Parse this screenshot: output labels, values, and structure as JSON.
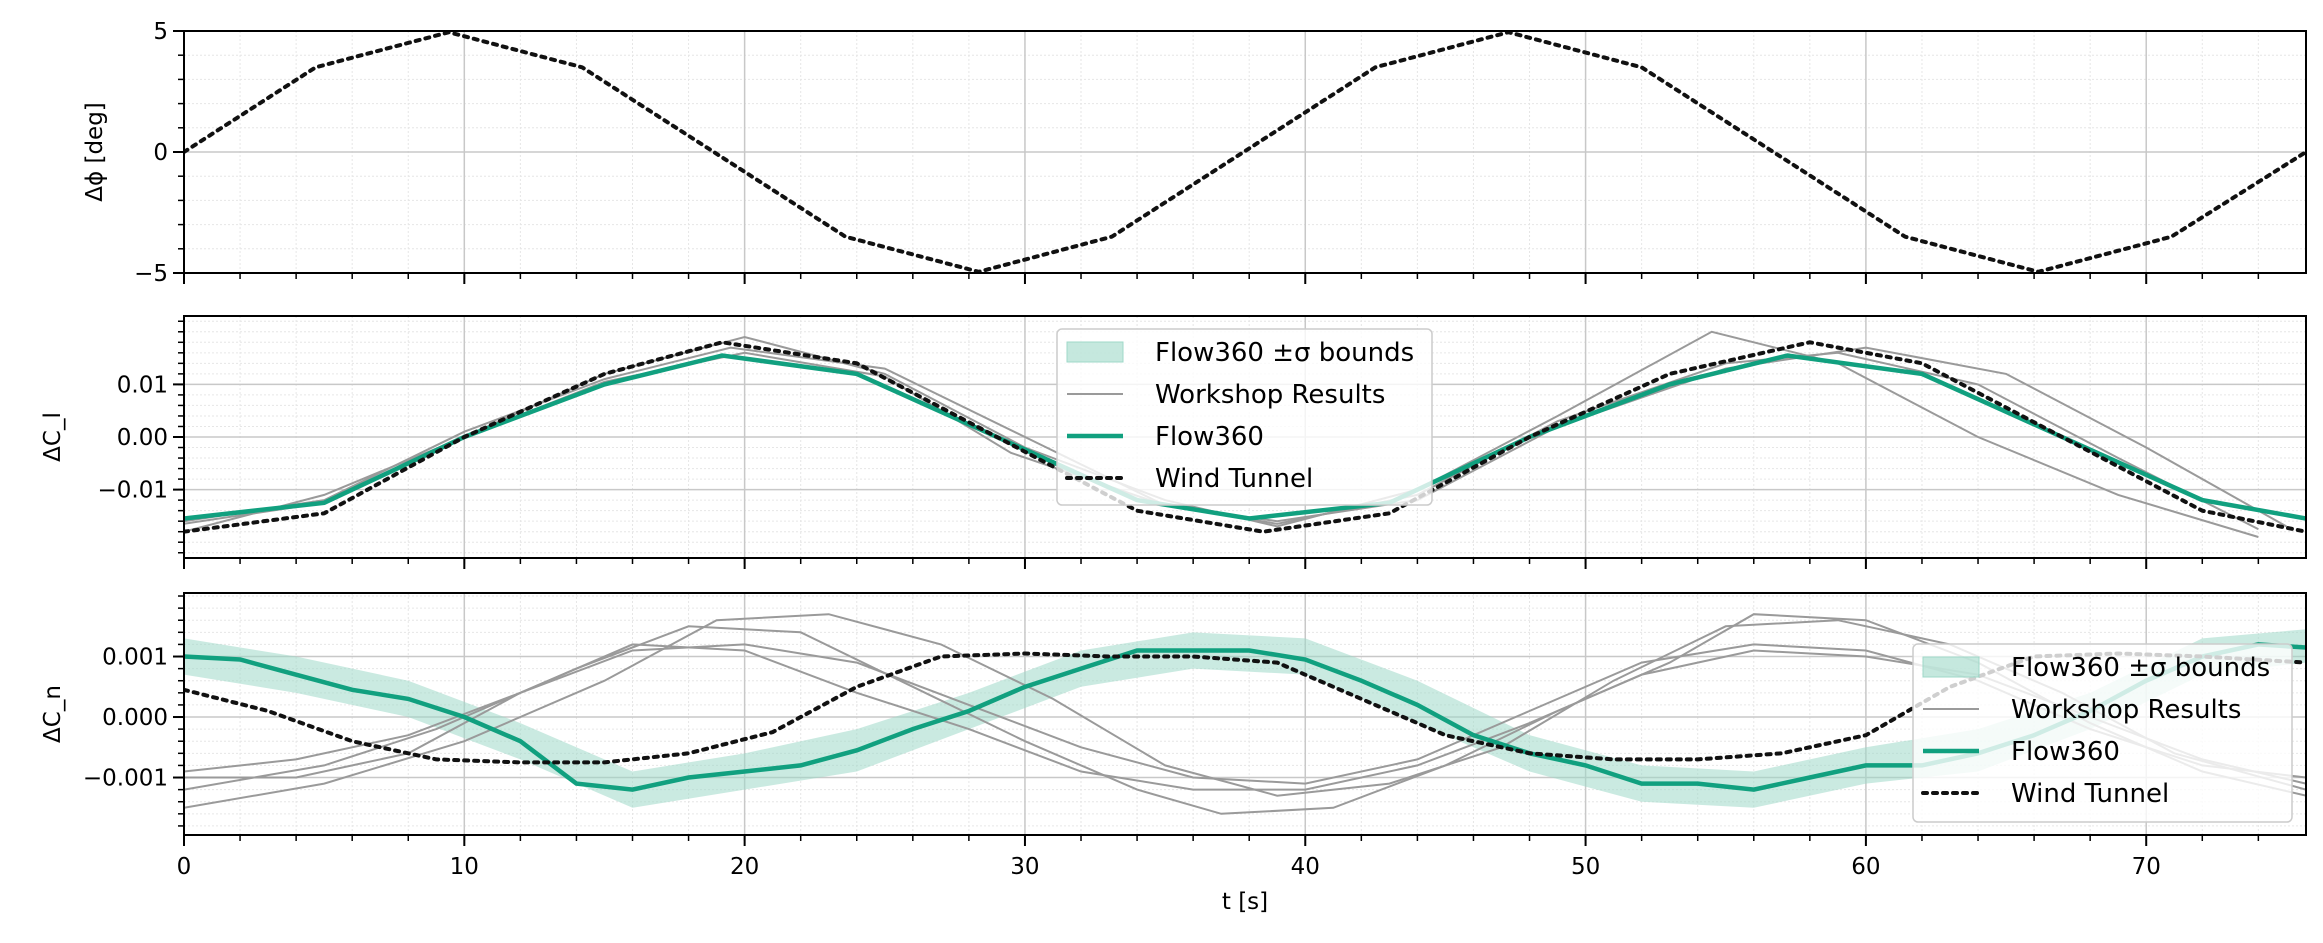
{
  "colors": {
    "flow360": "#11a07f",
    "flow360_band": "#9fd8c8",
    "workshop": "#9a9a9a",
    "wind_tunnel": "#111111",
    "grid_major": "#c8c8c8",
    "grid_minor": "#e6e6e6"
  },
  "chart_data": [
    {
      "type": "line",
      "ylabel": "Δϕ [deg]",
      "xlim": [
        0,
        75.7
      ],
      "ylim": [
        -5,
        5
      ],
      "yticks": [
        -5,
        0,
        5
      ],
      "ytick_labels": [
        "−5",
        "0",
        "5"
      ],
      "grid": true,
      "legend": null,
      "series": [
        {
          "name": "Wind Tunnel",
          "style": "dotted",
          "x": [
            0,
            4.7,
            9.45,
            14.2,
            18.9,
            23.6,
            28.35,
            33.1,
            37.8,
            42.5,
            47.25,
            52.0,
            56.7,
            61.4,
            66.15,
            70.9,
            75.7
          ],
          "values": [
            0,
            3.5,
            4.95,
            3.5,
            0,
            -3.5,
            -4.95,
            -3.5,
            0,
            3.5,
            4.95,
            3.5,
            0,
            -3.5,
            -4.95,
            -3.5,
            0
          ]
        }
      ]
    },
    {
      "type": "line",
      "ylabel": "ΔC_l",
      "xlim": [
        0,
        75.7
      ],
      "ylim": [
        -0.023,
        0.023
      ],
      "yticks": [
        -0.01,
        0.0,
        0.01
      ],
      "ytick_labels": [
        "−0.01",
        "0.00",
        "0.01"
      ],
      "grid": true,
      "legend": {
        "placement": "upper-center",
        "entries": [
          "Flow360 ±σ bounds",
          "Workshop Results",
          "Flow360",
          "Wind Tunnel"
        ]
      },
      "series": [
        {
          "name": "Flow360",
          "x": [
            0,
            5,
            10,
            15,
            19.2,
            24,
            29,
            34,
            38,
            43,
            48,
            53,
            57.2,
            62,
            67,
            72,
            75.7
          ],
          "values": [
            -0.0155,
            -0.0125,
            0.0,
            0.01,
            0.0155,
            0.012,
            0.0,
            -0.012,
            -0.0155,
            -0.0125,
            0.0,
            0.01,
            0.0155,
            0.012,
            0.0,
            -0.012,
            -0.0155
          ]
        },
        {
          "name": "Wind Tunnel",
          "x": [
            0,
            5,
            10,
            15,
            19.2,
            24,
            29,
            34,
            38.5,
            43,
            48,
            53,
            58,
            62,
            67,
            72,
            75.7
          ],
          "values": [
            -0.018,
            -0.0145,
            0.0,
            0.012,
            0.018,
            0.014,
            0.0,
            -0.014,
            -0.018,
            -0.0145,
            0.0,
            0.012,
            0.018,
            0.014,
            0.0,
            -0.014,
            -0.018
          ]
        },
        {
          "name": "Workshop 1",
          "x": [
            0,
            5,
            10,
            15,
            20,
            25,
            30,
            35,
            39,
            44,
            49,
            54.5,
            59,
            64,
            69,
            74
          ],
          "values": [
            -0.018,
            -0.011,
            0.0,
            0.012,
            0.019,
            0.012,
            -0.002,
            -0.012,
            -0.017,
            -0.01,
            0.004,
            0.02,
            0.014,
            0.0,
            -0.011,
            -0.019
          ]
        },
        {
          "name": "Workshop 2",
          "x": [
            0,
            5,
            10,
            15,
            19.5,
            25,
            30,
            35,
            39,
            44,
            49,
            55,
            60,
            65,
            70,
            75
          ],
          "values": [
            -0.016,
            -0.012,
            0.001,
            0.011,
            0.017,
            0.013,
            0.0,
            -0.013,
            -0.016,
            -0.012,
            0.002,
            0.013,
            0.017,
            0.012,
            -0.002,
            -0.017
          ]
        },
        {
          "name": "Workshop 3",
          "x": [
            0,
            5,
            10,
            15,
            20,
            25,
            29.5,
            35,
            39,
            44,
            49,
            55,
            59,
            64,
            69,
            74
          ],
          "values": [
            -0.0165,
            -0.0125,
            0.0,
            0.0105,
            0.016,
            0.0115,
            -0.003,
            -0.013,
            -0.0165,
            -0.011,
            0.003,
            0.014,
            0.016,
            0.01,
            -0.004,
            -0.0175
          ]
        }
      ]
    },
    {
      "type": "line",
      "ylabel": "ΔC_n",
      "xlabel": "t [s]",
      "xlim": [
        0,
        75.7
      ],
      "ylim": [
        -0.00195,
        0.00205
      ],
      "xticks": [
        0,
        10,
        20,
        30,
        40,
        50,
        60,
        70
      ],
      "xtick_labels": [
        "0",
        "10",
        "20",
        "30",
        "40",
        "50",
        "60",
        "70"
      ],
      "yticks": [
        -0.001,
        0.0,
        0.001
      ],
      "ytick_labels": [
        "−0.001",
        "0.000",
        "0.001"
      ],
      "grid": true,
      "legend": {
        "placement": "right",
        "entries": [
          "Flow360 ±σ bounds",
          "Workshop Results",
          "Flow360",
          "Wind Tunnel"
        ]
      },
      "series": [
        {
          "name": "Flow360",
          "x": [
            0,
            2,
            4,
            6,
            8,
            10,
            12,
            14,
            16,
            18,
            20,
            22,
            24,
            26,
            28,
            30,
            32,
            34,
            36,
            38,
            40,
            42,
            44,
            46,
            48,
            50,
            52,
            54,
            56,
            58,
            60,
            62,
            64,
            66,
            68,
            70,
            72,
            74,
            75.7
          ],
          "values": [
            0.001,
            0.00095,
            0.0007,
            0.00045,
            0.0003,
            0.0,
            -0.0004,
            -0.0011,
            -0.0012,
            -0.001,
            -0.0009,
            -0.0008,
            -0.00055,
            -0.0002,
            0.0001,
            0.0005,
            0.0008,
            0.0011,
            0.0011,
            0.0011,
            0.00095,
            0.0006,
            0.0002,
            -0.0003,
            -0.0006,
            -0.0008,
            -0.0011,
            -0.0011,
            -0.0012,
            -0.001,
            -0.0008,
            -0.0008,
            -0.0006,
            -0.0003,
            0.0001,
            0.0006,
            0.001,
            0.0012,
            0.00115
          ]
        },
        {
          "name": "Flow360 upper",
          "x": [
            0,
            4,
            8,
            12,
            16,
            20,
            24,
            28,
            32,
            36,
            40,
            44,
            48,
            52,
            56,
            60,
            64,
            68,
            72,
            75.7
          ],
          "values": [
            0.0013,
            0.001,
            0.0006,
            -0.0001,
            -0.0009,
            -0.0006,
            -0.0002,
            0.0004,
            0.0011,
            0.0014,
            0.0013,
            0.0006,
            -0.0003,
            -0.0008,
            -0.0009,
            -0.0005,
            -0.0002,
            0.0004,
            0.0013,
            0.00145
          ]
        },
        {
          "name": "Flow360 lower",
          "x": [
            0,
            4,
            8,
            12,
            16,
            20,
            24,
            28,
            32,
            36,
            40,
            44,
            48,
            52,
            56,
            60,
            64,
            68,
            72,
            75.7
          ],
          "values": [
            0.0007,
            0.0004,
            0.0,
            -0.0007,
            -0.0015,
            -0.0012,
            -0.0009,
            -0.0002,
            0.0005,
            0.0008,
            0.0007,
            -0.0001,
            -0.0009,
            -0.0014,
            -0.0015,
            -0.0011,
            -0.0009,
            -0.0002,
            0.0007,
            0.0009
          ]
        },
        {
          "name": "Wind Tunnel",
          "x": [
            0,
            3,
            6,
            9,
            12,
            15,
            18,
            21,
            24,
            27,
            30,
            33,
            36,
            39,
            42,
            45,
            48,
            51,
            54,
            57,
            60,
            63,
            66,
            69,
            72,
            75.7
          ],
          "values": [
            0.00045,
            0.0001,
            -0.0004,
            -0.0007,
            -0.00075,
            -0.00075,
            -0.0006,
            -0.00025,
            0.0005,
            0.001,
            0.00105,
            0.001,
            0.001,
            0.0009,
            0.0003,
            -0.0003,
            -0.0006,
            -0.0007,
            -0.0007,
            -0.0006,
            -0.0003,
            0.0005,
            0.001,
            0.00105,
            0.001,
            0.0009
          ]
        },
        {
          "name": "Workshop 1",
          "x": [
            0,
            5,
            10,
            15,
            19,
            23,
            27,
            31,
            35,
            39,
            43,
            47,
            51,
            55,
            59,
            63,
            67,
            71,
            75.7
          ],
          "values": [
            -0.0015,
            -0.0011,
            -0.0004,
            0.0006,
            0.0016,
            0.0017,
            0.0012,
            0.0003,
            -0.0008,
            -0.0013,
            -0.0011,
            -0.0005,
            0.0006,
            0.0015,
            0.0016,
            0.0012,
            0.0004,
            -0.0006,
            -0.0012
          ]
        },
        {
          "name": "Workshop 2",
          "x": [
            0,
            5,
            9,
            14,
            18,
            22,
            26,
            30,
            34,
            37,
            41,
            45,
            49,
            53,
            56,
            60,
            64,
            68,
            72,
            75.7
          ],
          "values": [
            -0.0012,
            -0.0008,
            -0.0002,
            0.0008,
            0.0015,
            0.0014,
            0.0005,
            -0.0004,
            -0.0012,
            -0.0016,
            -0.0015,
            -0.0008,
            0.0001,
            0.0009,
            0.0017,
            0.0016,
            0.0009,
            -0.0001,
            -0.0009,
            -0.0013
          ]
        },
        {
          "name": "Workshop 3",
          "x": [
            0,
            4,
            8,
            12,
            16,
            20,
            24,
            28,
            32,
            36,
            40,
            44,
            48,
            52,
            56,
            60,
            64,
            68,
            72,
            75.7
          ],
          "values": [
            -0.0009,
            -0.0007,
            -0.0003,
            0.0004,
            0.0011,
            0.0012,
            0.0009,
            0.0002,
            -0.0005,
            -0.001,
            -0.0011,
            -0.0007,
            0.0001,
            0.0009,
            0.0012,
            0.0011,
            0.0006,
            -0.0002,
            -0.0008,
            -0.001
          ]
        },
        {
          "name": "Workshop 4",
          "x": [
            0,
            4,
            8,
            12,
            16,
            20,
            24,
            28,
            32,
            36,
            40,
            44,
            48,
            52,
            56,
            60,
            64,
            68,
            72,
            75.7
          ],
          "values": [
            -0.001,
            -0.001,
            -0.0006,
            0.0004,
            0.0012,
            0.0011,
            0.0004,
            -0.0002,
            -0.0009,
            -0.0012,
            -0.0012,
            -0.0008,
            -0.0001,
            0.0007,
            0.0011,
            0.001,
            0.0007,
            0.0,
            -0.0007,
            -0.0011
          ]
        }
      ]
    }
  ],
  "legend_labels": {
    "band": "Flow360 ±σ bounds",
    "workshop": "Workshop Results",
    "flow360": "Flow360",
    "wind_tunnel": "Wind Tunnel"
  }
}
